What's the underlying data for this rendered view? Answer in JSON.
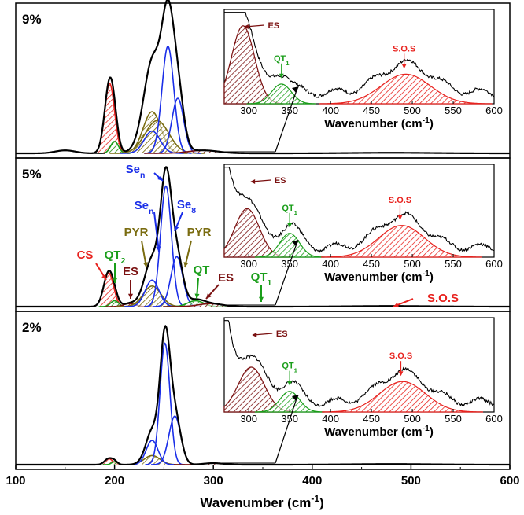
{
  "colors": {
    "main": "#000000",
    "CS": "#e8231f",
    "QT": "#1a9e1a",
    "PYR": "#7a6c10",
    "ES": "#7a1010",
    "Se": "#1a2ee8",
    "SOS": "#e8231f"
  },
  "chart_data": {
    "type": "line",
    "xlabel": "Wavenumber (cm",
    "xlabel_sup": "-1",
    "xlabel_end": ")",
    "xlim": [
      100,
      600
    ],
    "xticks": [
      "100",
      "200",
      "300",
      "400",
      "500",
      "600"
    ],
    "panels": [
      {
        "label": "9%",
        "peaks": [
          {
            "name": "CS",
            "center": 195,
            "height": 0.47,
            "width": 5,
            "color": "CS",
            "hatch": true
          },
          {
            "name": "QT2",
            "center": 200,
            "height": 0.08,
            "width": 4,
            "color": "QT",
            "hatch": true
          },
          {
            "name": "PYR-a",
            "center": 238,
            "height": 0.28,
            "width": 9,
            "color": "PYR",
            "hatch": true
          },
          {
            "name": "PYR-b",
            "center": 243,
            "height": 0.22,
            "width": 12,
            "color": "PYR",
            "hatch": true
          },
          {
            "name": "Sen-a",
            "center": 238,
            "height": 0.15,
            "width": 8,
            "color": "Se",
            "hatch": false
          },
          {
            "name": "Sen-b",
            "center": 254,
            "height": 0.72,
            "width": 6,
            "color": "Se",
            "hatch": false
          },
          {
            "name": "Se8",
            "center": 264,
            "height": 0.37,
            "width": 6,
            "color": "Se",
            "hatch": false
          },
          {
            "name": "ES",
            "center": 290,
            "height": 0.02,
            "width": 15,
            "color": "ES",
            "hatch": true
          },
          {
            "name": "minor-1",
            "center": 150,
            "height": 0.02,
            "width": 10,
            "color": "main",
            "hatch": false
          }
        ],
        "inset": {
          "xlim": [
            270,
            600
          ],
          "xticks": [
            "300",
            "350",
            "400",
            "450",
            "500",
            "550",
            "600"
          ],
          "xlabel": "Wavenumber (cm",
          "annotations": [
            {
              "text": "ES",
              "sub": "",
              "color": "ES",
              "x": 292
            },
            {
              "text": "QT",
              "sub": "1",
              "color": "QT",
              "x": 340
            },
            {
              "text": "S.O.S",
              "sub": "",
              "color": "SOS",
              "x": 490
            }
          ],
          "peaks": [
            {
              "name": "ES",
              "center": 293,
              "height": 0.87,
              "width": 14,
              "color": "ES"
            },
            {
              "name": "QT1",
              "center": 340,
              "height": 0.22,
              "width": 12,
              "color": "QT"
            },
            {
              "name": "SOS",
              "center": 492,
              "height": 0.33,
              "width": 30,
              "color": "SOS"
            }
          ],
          "baseline": 0.25
        }
      },
      {
        "label": "5%",
        "peaks": [
          {
            "name": "CS",
            "center": 194,
            "height": 0.23,
            "width": 5,
            "color": "CS",
            "hatch": true
          },
          {
            "name": "QT2",
            "center": 200,
            "height": 0.04,
            "width": 4,
            "color": "QT",
            "hatch": true
          },
          {
            "name": "ES-a",
            "center": 215,
            "height": 0.02,
            "width": 6,
            "color": "ES",
            "hatch": true
          },
          {
            "name": "PYR-a",
            "center": 238,
            "height": 0.14,
            "width": 9,
            "color": "PYR",
            "hatch": true
          },
          {
            "name": "Sen-a",
            "center": 238,
            "height": 0.18,
            "width": 7,
            "color": "Se",
            "hatch": false
          },
          {
            "name": "Sen-b",
            "center": 252,
            "height": 0.82,
            "width": 5.5,
            "color": "Se",
            "hatch": false
          },
          {
            "name": "Se8",
            "center": 263,
            "height": 0.34,
            "width": 6,
            "color": "Se",
            "hatch": false
          },
          {
            "name": "QT",
            "center": 282,
            "height": 0.04,
            "width": 8,
            "color": "QT",
            "hatch": true
          },
          {
            "name": "ES-b",
            "center": 297,
            "height": 0.02,
            "width": 12,
            "color": "ES",
            "hatch": true
          }
        ],
        "annotations": [
          {
            "text": "CS",
            "sub": "",
            "color": "CS"
          },
          {
            "text": "QT",
            "sub": "2",
            "color": "QT"
          },
          {
            "text": "ES",
            "sub": "",
            "color": "ES"
          },
          {
            "text": "PYR",
            "sub": "",
            "color": "PYR"
          },
          {
            "text": "Se",
            "sub": "n",
            "color": "Se"
          },
          {
            "text": "Se",
            "sub": "n",
            "color": "Se"
          },
          {
            "text": "Se",
            "sub": "8",
            "color": "Se"
          },
          {
            "text": "PYR",
            "sub": "",
            "color": "PYR"
          },
          {
            "text": "QT",
            "sub": "",
            "color": "QT"
          },
          {
            "text": "ES",
            "sub": "",
            "color": "ES"
          },
          {
            "text": "QT",
            "sub": "1",
            "color": "QT"
          },
          {
            "text": "S.O.S",
            "sub": "",
            "color": "SOS"
          }
        ],
        "inset": {
          "xlim": [
            270,
            600
          ],
          "xticks": [
            "300",
            "350",
            "400",
            "450",
            "500",
            "550",
            "600"
          ],
          "xlabel": "Wavenumber (cm",
          "annotations": [
            {
              "text": "ES",
              "sub": "",
              "color": "ES",
              "x": 300
            },
            {
              "text": "QT",
              "sub": "1",
              "color": "QT",
              "x": 350
            },
            {
              "text": "S.O.S",
              "sub": "",
              "color": "SOS",
              "x": 485
            }
          ],
          "peaks": [
            {
              "name": "ES",
              "center": 298,
              "height": 0.55,
              "width": 15,
              "color": "ES"
            },
            {
              "name": "QT1",
              "center": 350,
              "height": 0.27,
              "width": 12,
              "color": "QT"
            },
            {
              "name": "SOS",
              "center": 487,
              "height": 0.36,
              "width": 28,
              "color": "SOS"
            }
          ],
          "baseline": 0.22
        }
      },
      {
        "label": "2%",
        "peaks": [
          {
            "name": "CS",
            "center": 194,
            "height": 0.04,
            "width": 4,
            "color": "CS",
            "hatch": true
          },
          {
            "name": "QT2",
            "center": 200,
            "height": 0.02,
            "width": 3,
            "color": "QT",
            "hatch": true
          },
          {
            "name": "PYR-a",
            "center": 238,
            "height": 0.06,
            "width": 8,
            "color": "PYR",
            "hatch": true
          },
          {
            "name": "Sen-a",
            "center": 238,
            "height": 0.16,
            "width": 6,
            "color": "Se",
            "hatch": false
          },
          {
            "name": "Sen-b",
            "center": 251,
            "height": 0.8,
            "width": 5,
            "color": "Se",
            "hatch": false
          },
          {
            "name": "Se8",
            "center": 261,
            "height": 0.32,
            "width": 6,
            "color": "Se",
            "hatch": false
          },
          {
            "name": "ES",
            "center": 300,
            "height": 0.01,
            "width": 10,
            "color": "ES",
            "hatch": true
          }
        ],
        "inset": {
          "xlim": [
            270,
            600
          ],
          "xticks": [
            "300",
            "350",
            "400",
            "450",
            "500",
            "550",
            "600"
          ],
          "xlabel": "Wavenumber (cm",
          "annotations": [
            {
              "text": "ES",
              "sub": "",
              "color": "ES",
              "x": 302
            },
            {
              "text": "QT",
              "sub": "1",
              "color": "QT",
              "x": 350
            },
            {
              "text": "S.O.S",
              "sub": "",
              "color": "SOS",
              "x": 486
            }
          ],
          "peaks": [
            {
              "name": "ES",
              "center": 303,
              "height": 0.5,
              "width": 16,
              "color": "ES"
            },
            {
              "name": "QT1",
              "center": 350,
              "height": 0.23,
              "width": 12,
              "color": "QT"
            },
            {
              "name": "SOS",
              "center": 488,
              "height": 0.34,
              "width": 28,
              "color": "SOS"
            }
          ],
          "baseline": 0.22
        }
      }
    ]
  }
}
